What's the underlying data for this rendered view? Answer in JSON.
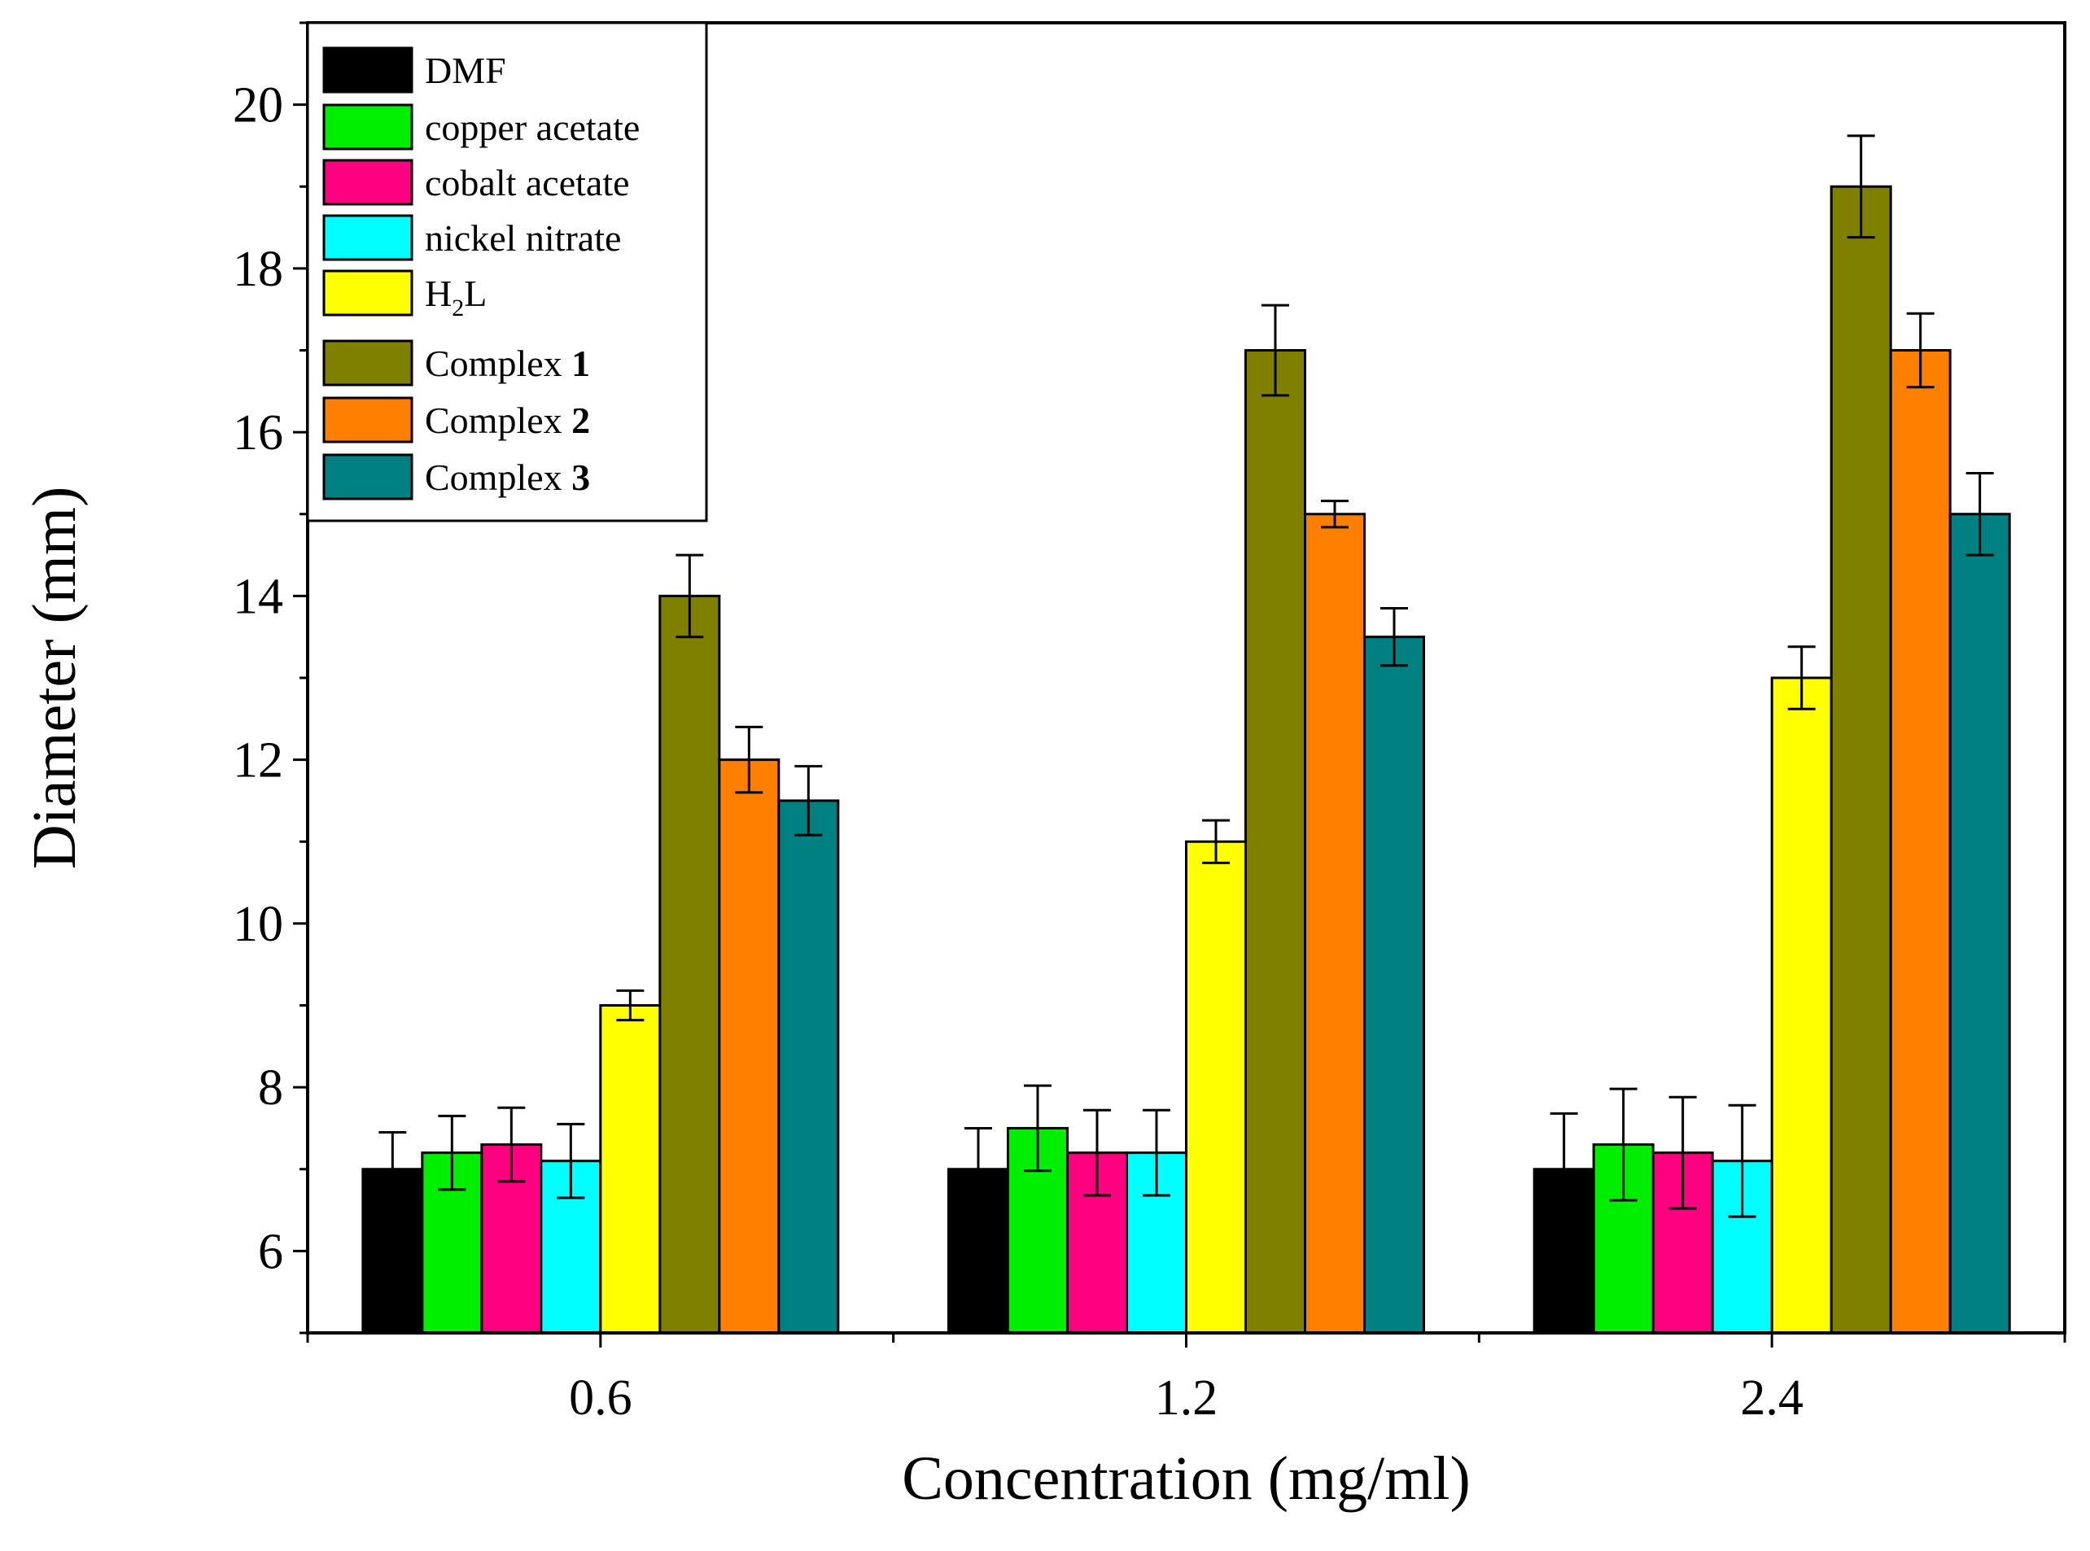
{
  "chart_data": {
    "type": "bar",
    "title": "",
    "xlabel": "Concentration (mg/ml)",
    "ylabel": "Diameter (mm)",
    "categories": [
      "0.6",
      "1.2",
      "2.4"
    ],
    "ylim": [
      5,
      21
    ],
    "yticks": [
      6,
      8,
      10,
      12,
      14,
      16,
      18,
      20
    ],
    "grid": false,
    "legend_position": "top-left",
    "series": [
      {
        "name": "DMF",
        "name_main": "DMF",
        "name_bold": "",
        "color": "#000000",
        "values": [
          7.0,
          7.0,
          7.0
        ],
        "errors": [
          0.45,
          0.5,
          0.68
        ]
      },
      {
        "name": "copper acetate",
        "name_main": "copper acetate",
        "name_bold": "",
        "color": "#00ee00",
        "values": [
          7.2,
          7.5,
          7.3
        ],
        "errors": [
          0.45,
          0.52,
          0.68
        ]
      },
      {
        "name": "cobalt acetate",
        "name_main": "cobalt acetate",
        "name_bold": "",
        "color": "#ff0080",
        "values": [
          7.3,
          7.2,
          7.2
        ],
        "errors": [
          0.45,
          0.52,
          0.68
        ]
      },
      {
        "name": "nickel nitrate",
        "name_main": "nickel nitrate",
        "name_bold": "",
        "color": "#00ffff",
        "values": [
          7.1,
          7.2,
          7.1
        ],
        "errors": [
          0.45,
          0.52,
          0.68
        ]
      },
      {
        "name": "H2L",
        "name_main": "H",
        "name_sub": "2",
        "name_tail": "L",
        "name_bold": "",
        "color": "#ffff00",
        "values": [
          9.0,
          11.0,
          13.0
        ],
        "errors": [
          0.18,
          0.26,
          0.38
        ]
      },
      {
        "name": "Complex 1",
        "name_main": "Complex ",
        "name_bold": "1",
        "color": "#808000",
        "values": [
          14.0,
          17.0,
          19.0
        ],
        "errors": [
          0.5,
          0.55,
          0.62
        ]
      },
      {
        "name": "Complex 2",
        "name_main": "Complex ",
        "name_bold": "2",
        "color": "#ff8000",
        "values": [
          12.0,
          15.0,
          17.0
        ],
        "errors": [
          0.4,
          0.16,
          0.45
        ]
      },
      {
        "name": "Complex 3",
        "name_main": "Complex ",
        "name_bold": "3",
        "color": "#008080",
        "values": [
          11.5,
          13.5,
          15.0
        ],
        "errors": [
          0.42,
          0.35,
          0.5
        ]
      }
    ]
  }
}
